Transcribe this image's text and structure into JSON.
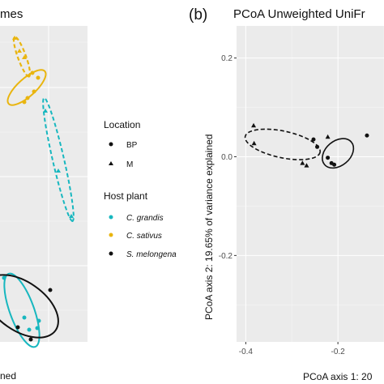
{
  "colors": {
    "C_grandis": "#17b7bf",
    "C_sativus": "#e9b50f",
    "S_melongena": "#111111"
  },
  "panel_a": {
    "title_fragment": "mes",
    "xlabel_fragment": "ned"
  },
  "legend": {
    "location_title": "Location",
    "location_items": [
      {
        "label": "BP",
        "shape": "circle"
      },
      {
        "label": "M",
        "shape": "triangle"
      }
    ],
    "host_title": "Host plant",
    "host_items": [
      {
        "label": "C. grandis",
        "color_key": "C_grandis"
      },
      {
        "label": "C. sativus",
        "color_key": "C_sativus"
      },
      {
        "label": "S. melongena",
        "color_key": "S_melongena"
      }
    ]
  },
  "chart_data": [
    {
      "panel": "a",
      "type": "scatter",
      "title": "mes",
      "xlabel": "ned",
      "ylabel": "",
      "series": [
        {
          "name": "C. sativus",
          "color_key": "C_sativus",
          "points_px_free": [
            {
              "x": 0.18,
              "y": 0.93,
              "shape": "triangle"
            },
            {
              "x": 0.24,
              "y": 0.78,
              "shape": "triangle"
            },
            {
              "x": 0.3,
              "y": 0.72,
              "shape": "circle"
            },
            {
              "x": 0.36,
              "y": 0.8,
              "shape": "circle"
            },
            {
              "x": 0.48,
              "y": 0.76,
              "shape": "circle"
            },
            {
              "x": 0.42,
              "y": 0.68,
              "shape": "circle"
            },
            {
              "x": 0.3,
              "y": 0.55,
              "shape": "circle"
            },
            {
              "x": 0.33,
              "y": 0.62,
              "shape": "circle"
            }
          ]
        },
        {
          "name": "C. grandis",
          "color_key": "C_grandis",
          "points_px_free": [
            {
              "x": 0.55,
              "y": 0.48,
              "shape": "triangle"
            },
            {
              "x": 0.7,
              "y": 0.2,
              "shape": "triangle"
            },
            {
              "x": 0.8,
              "y": -0.2,
              "shape": "triangle"
            },
            {
              "x": 0.05,
              "y": -0.95,
              "shape": "circle"
            },
            {
              "x": 0.3,
              "y": -1.15,
              "shape": "circle"
            },
            {
              "x": 0.35,
              "y": -1.28,
              "shape": "circle"
            },
            {
              "x": 0.45,
              "y": -1.28,
              "shape": "circle"
            },
            {
              "x": 0.48,
              "y": -1.2,
              "shape": "circle"
            }
          ]
        },
        {
          "name": "S. melongena",
          "color_key": "S_melongena",
          "points_px_free": [
            {
              "x": 0.62,
              "y": -0.98,
              "shape": "circle"
            },
            {
              "x": 0.22,
              "y": -1.22,
              "shape": "circle"
            },
            {
              "x": 0.4,
              "y": -1.35,
              "shape": "circle"
            }
          ]
        }
      ]
    },
    {
      "panel": "b",
      "type": "scatter",
      "title": "PCoA Unweighted UniFr",
      "xlabel": "PCoA axis 1: 20",
      "ylabel": "PCoA axis 2: 19.65% of variance explained",
      "x_ticks": [
        -0.4,
        -0.2
      ],
      "y_ticks": [
        0.2,
        0.0,
        -0.2
      ],
      "x_tick_labels": [
        "-0.4",
        "-0.2"
      ],
      "y_tick_labels": [
        "0.2",
        "0.0",
        "-0.2"
      ],
      "xlim": [
        -0.42,
        -0.1
      ],
      "ylim": [
        -0.375,
        0.265
      ],
      "grid": true,
      "series": [
        {
          "name": "M",
          "shape": "triangle",
          "color_key": "S_melongena",
          "points": [
            {
              "x": -0.383,
              "y": 0.063
            },
            {
              "x": -0.382,
              "y": 0.027
            },
            {
              "x": -0.277,
              "y": -0.013
            },
            {
              "x": -0.268,
              "y": -0.018
            },
            {
              "x": -0.222,
              "y": 0.04
            }
          ]
        },
        {
          "name": "BP",
          "shape": "circle",
          "color_key": "S_melongena",
          "points": [
            {
              "x": -0.137,
              "y": 0.043
            },
            {
              "x": -0.253,
              "y": 0.035
            },
            {
              "x": -0.245,
              "y": 0.02
            },
            {
              "x": -0.222,
              "y": -0.002
            },
            {
              "x": -0.214,
              "y": -0.013
            },
            {
              "x": -0.208,
              "y": -0.016
            }
          ]
        }
      ],
      "ellipses": [
        {
          "group": "M",
          "cx": -0.32,
          "cy": 0.025,
          "rx": 0.083,
          "ry": 0.027,
          "angle_deg": 12,
          "dash": true
        },
        {
          "group": "BP",
          "cx": -0.2,
          "cy": 0.007,
          "rx": 0.038,
          "ry": 0.025,
          "angle_deg": -40,
          "dash": false
        }
      ]
    }
  ]
}
